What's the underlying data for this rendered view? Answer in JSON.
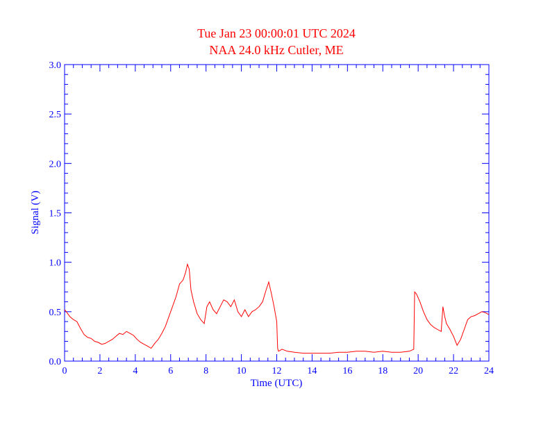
{
  "chart_data": {
    "type": "line",
    "title": "Tue Jan 23 00:00:01 UTC 2024",
    "subtitle": "NAA 24.0 kHz Cutler, ME",
    "xlabel": "Time (UTC)",
    "ylabel": "Signal (V)",
    "xlim": [
      0,
      24
    ],
    "ylim": [
      0,
      3.0
    ],
    "xticks": [
      0,
      2,
      4,
      6,
      8,
      10,
      12,
      14,
      16,
      18,
      20,
      22,
      24
    ],
    "xtick_labels": [
      "0",
      "2",
      "4",
      "6",
      "8",
      "10",
      "12",
      "14",
      "16",
      "18",
      "20",
      "22",
      "24"
    ],
    "yticks": [
      0,
      0.5,
      1.0,
      1.5,
      2.0,
      2.5,
      3.0
    ],
    "ytick_labels": [
      "0.0",
      "0.5",
      "1.0",
      "1.5",
      "2.0",
      "2.5",
      "3.0"
    ],
    "grid": false,
    "colors": {
      "axis": "#0000ff",
      "title": "#ff0000",
      "series": "#ff0000"
    },
    "series": [
      {
        "x": [
          0,
          0.1,
          0.3,
          0.5,
          0.7,
          0.9,
          1.1,
          1.3,
          1.5,
          1.7,
          1.9,
          2.1,
          2.3,
          2.5,
          2.7,
          2.9,
          3.1,
          3.3,
          3.5,
          3.7,
          3.9,
          4.1,
          4.3,
          4.5,
          4.7,
          4.9,
          5.1,
          5.3,
          5.5,
          5.7,
          5.9,
          6.1,
          6.3,
          6.5,
          6.7,
          6.85,
          6.95,
          7.05,
          7.15,
          7.3,
          7.5,
          7.7,
          7.9,
          8.05,
          8.2,
          8.4,
          8.6,
          8.8,
          9.0,
          9.2,
          9.4,
          9.6,
          9.8,
          10.0,
          10.2,
          10.4,
          10.6,
          10.8,
          11.0,
          11.2,
          11.4,
          11.55,
          11.7,
          11.85,
          12.0,
          12.05,
          12.1,
          12.3,
          12.6,
          13.0,
          13.5,
          14.0,
          14.5,
          15.0,
          15.5,
          16.0,
          16.5,
          17.0,
          17.5,
          18.0,
          18.5,
          19.0,
          19.5,
          19.75,
          19.8,
          19.9,
          20.1,
          20.3,
          20.5,
          20.7,
          20.9,
          21.1,
          21.3,
          21.4,
          21.5,
          21.6,
          21.8,
          22.0,
          22.2,
          22.4,
          22.6,
          22.8,
          23.0,
          23.2,
          23.4,
          23.6,
          23.8,
          24.0
        ],
        "y": [
          0.52,
          0.5,
          0.45,
          0.42,
          0.4,
          0.33,
          0.27,
          0.24,
          0.23,
          0.2,
          0.19,
          0.17,
          0.18,
          0.2,
          0.22,
          0.25,
          0.28,
          0.27,
          0.3,
          0.28,
          0.26,
          0.22,
          0.19,
          0.17,
          0.15,
          0.13,
          0.18,
          0.22,
          0.28,
          0.35,
          0.45,
          0.55,
          0.65,
          0.78,
          0.82,
          0.9,
          0.98,
          0.93,
          0.72,
          0.6,
          0.48,
          0.42,
          0.38,
          0.55,
          0.6,
          0.52,
          0.48,
          0.55,
          0.62,
          0.6,
          0.55,
          0.62,
          0.5,
          0.45,
          0.52,
          0.45,
          0.5,
          0.52,
          0.55,
          0.6,
          0.72,
          0.8,
          0.68,
          0.55,
          0.4,
          0.13,
          0.1,
          0.12,
          0.1,
          0.09,
          0.08,
          0.08,
          0.08,
          0.08,
          0.09,
          0.09,
          0.1,
          0.1,
          0.09,
          0.1,
          0.09,
          0.09,
          0.1,
          0.12,
          0.7,
          0.68,
          0.6,
          0.5,
          0.42,
          0.37,
          0.34,
          0.32,
          0.3,
          0.55,
          0.45,
          0.38,
          0.32,
          0.25,
          0.16,
          0.22,
          0.32,
          0.42,
          0.45,
          0.46,
          0.48,
          0.5,
          0.49,
          0.47
        ]
      }
    ]
  }
}
